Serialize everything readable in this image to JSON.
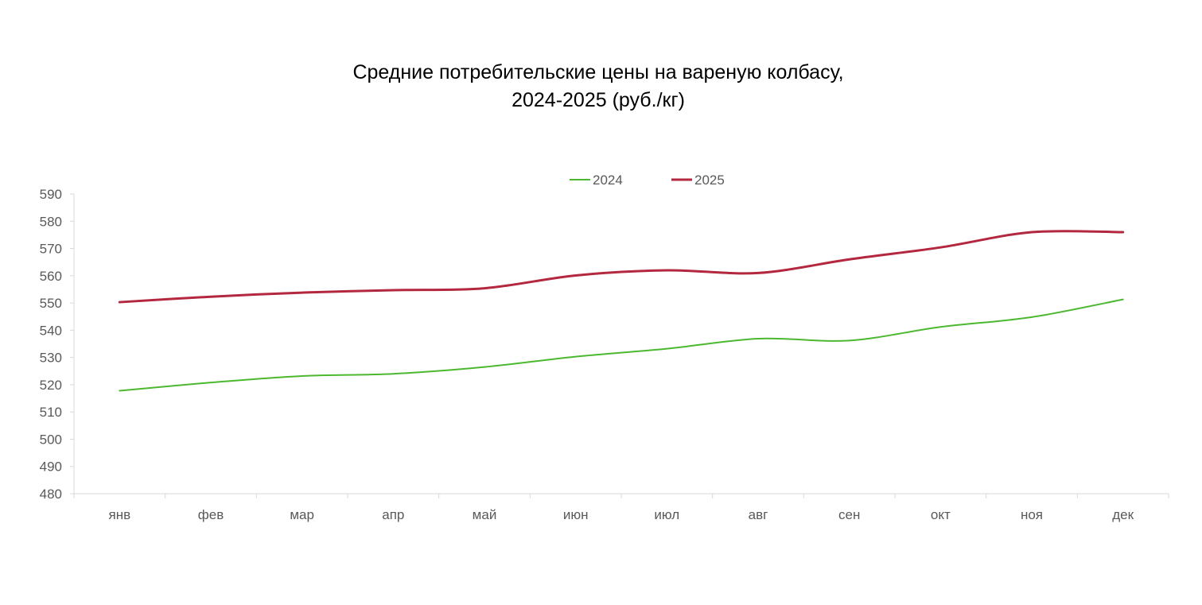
{
  "chart_data": {
    "type": "line",
    "title_lines": [
      "Средние потребительские цены на вареную колбасу,",
      "2024-2025 (руб./кг)"
    ],
    "categories": [
      "янв",
      "фев",
      "мар",
      "апр",
      "май",
      "июн",
      "июл",
      "авг",
      "сен",
      "окт",
      "ноя",
      "дек"
    ],
    "ylim": [
      480,
      590
    ],
    "yticks": [
      480,
      490,
      500,
      510,
      520,
      530,
      540,
      550,
      560,
      570,
      580,
      590
    ],
    "legend_position": "top-center",
    "grid": false,
    "series": [
      {
        "name": "2024",
        "color": "#4cb82f",
        "values": [
          517.8,
          520.8,
          523.2,
          524.0,
          526.5,
          530.3,
          533.2,
          536.9,
          536.2,
          541.2,
          544.8,
          551.3
        ]
      },
      {
        "name": "2025",
        "color": "#b3273f",
        "values": [
          550.3,
          552.3,
          553.8,
          554.7,
          555.4,
          560.1,
          562.0,
          561.0,
          566.0,
          570.4,
          576.0,
          576.0
        ]
      }
    ]
  }
}
